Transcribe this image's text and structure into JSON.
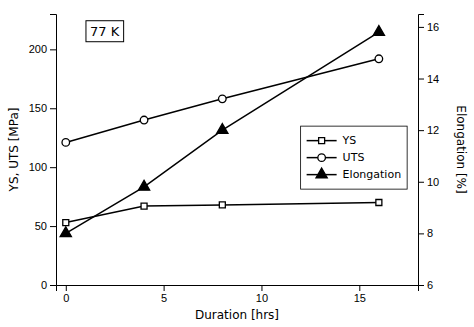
{
  "chart_data": {
    "type": "line",
    "x": [
      0,
      4,
      8,
      16
    ],
    "xlabel": "Duration [hrs]",
    "ylabel": "YS, UTS [MPa]",
    "y2label": "Elongation [%]",
    "annotation": "77 K",
    "xlim": [
      -0.5,
      18
    ],
    "xticks": [
      0,
      5,
      10,
      15
    ],
    "ylim": [
      0,
      230
    ],
    "yticks": [
      0,
      50,
      100,
      150,
      200
    ],
    "y2lim": [
      6,
      16.5
    ],
    "y2ticks": [
      6,
      8,
      10,
      12,
      14,
      16
    ],
    "legend": "right",
    "series": [
      {
        "name": "YS",
        "color": "#000000",
        "marker": "square-open",
        "values": [
          53,
          67,
          68,
          70
        ]
      },
      {
        "name": "UTS",
        "color": "#000000",
        "marker": "circle-open",
        "values": [
          121,
          140,
          158,
          192
        ]
      },
      {
        "name": "Elongation",
        "color": "#000000",
        "marker": "triangle",
        "axis": "y2",
        "values": [
          8.0,
          9.8,
          12.0,
          15.8
        ]
      }
    ]
  }
}
